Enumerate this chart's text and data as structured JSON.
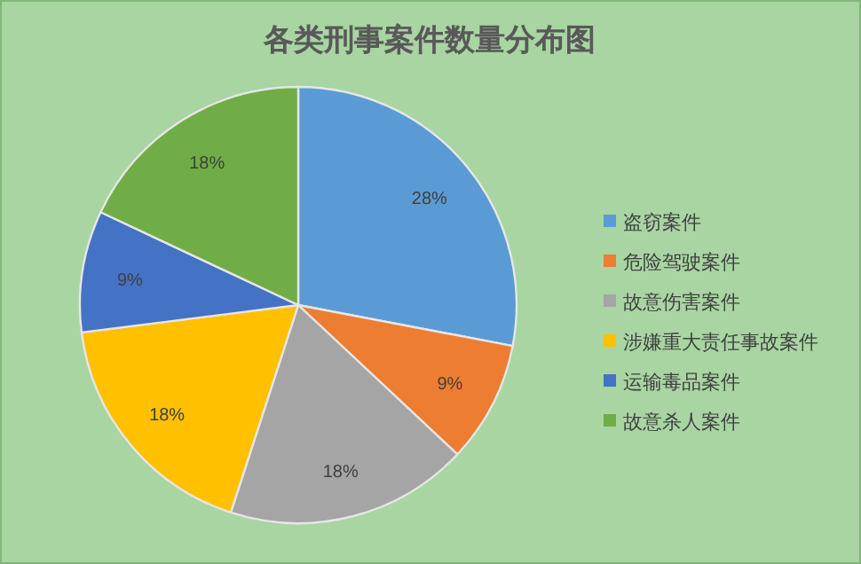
{
  "chart_data": {
    "type": "pie",
    "title": "各类刑事案件数量分布图",
    "categories": [
      "盗窃案件",
      "危险驾驶案件",
      "故意伤害案件",
      "涉嫌重大责任事故案件",
      "运输毒品案件",
      "故意杀人案件"
    ],
    "values": [
      28,
      9,
      18,
      18,
      9,
      18
    ],
    "colors": [
      "#5b9bd5",
      "#ed7d31",
      "#a5a5a5",
      "#ffc000",
      "#4472c4",
      "#70ad47"
    ],
    "value_labels": [
      "28%",
      "9%",
      "18%",
      "18%",
      "9%",
      "18%"
    ],
    "legend": "right"
  }
}
